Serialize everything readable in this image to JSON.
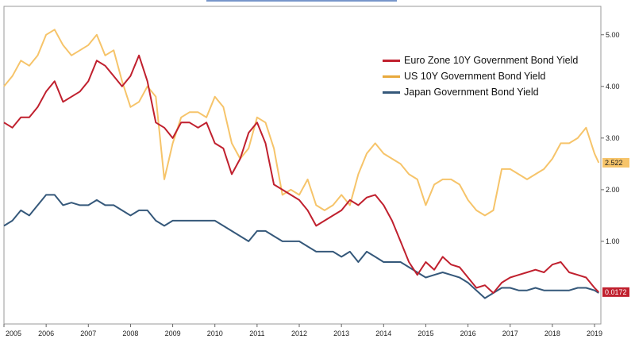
{
  "chart_data": {
    "type": "line",
    "title": "",
    "xlabel": "",
    "ylabel": "",
    "xlim": [
      2005.0,
      2019.15
    ],
    "ylim": [
      -0.6,
      5.55
    ],
    "yticks": [
      1.0,
      2.0,
      3.0,
      4.0,
      5.0
    ],
    "ytick_labels": [
      "1.00",
      "2.00",
      "3.00",
      "4.00",
      "5.00"
    ],
    "xticks": [
      2005,
      2006,
      2007,
      2008,
      2009,
      2010,
      2011,
      2012,
      2013,
      2014,
      2015,
      2016,
      2017,
      2018,
      2019
    ],
    "xtick_labels": [
      "2005",
      "2006",
      "2007",
      "2008",
      "2009",
      "2010",
      "2011",
      "2012",
      "2013",
      "2014",
      "2015",
      "2016",
      "2017",
      "2018",
      "2019"
    ],
    "legend_position": "top-right",
    "grid": false,
    "colors": {
      "euro": "#c0202e",
      "us": "#f6c46a",
      "japan": "#35587a",
      "tag_us_bg": "#f6c46a",
      "tag_euro_bg": "#c0202e"
    },
    "last_value_tags": [
      {
        "series": "US 10Y Government Bond Yield",
        "label": "2.522",
        "value": 2.522
      },
      {
        "series": "Euro Zone 10Y Government Bond Yield",
        "label": "0.0172",
        "value": 0.0172
      }
    ],
    "series": [
      {
        "name": "Euro Zone 10Y Government Bond Yield",
        "key": "euro",
        "x": [
          2005.0,
          2005.2,
          2005.4,
          2005.6,
          2005.8,
          2006.0,
          2006.2,
          2006.4,
          2006.6,
          2006.8,
          2007.0,
          2007.2,
          2007.4,
          2007.6,
          2007.8,
          2008.0,
          2008.2,
          2008.4,
          2008.6,
          2008.8,
          2009.0,
          2009.2,
          2009.4,
          2009.6,
          2009.8,
          2010.0,
          2010.2,
          2010.4,
          2010.6,
          2010.8,
          2011.0,
          2011.2,
          2011.4,
          2011.6,
          2011.8,
          2012.0,
          2012.2,
          2012.4,
          2012.6,
          2012.8,
          2013.0,
          2013.2,
          2013.4,
          2013.6,
          2013.8,
          2014.0,
          2014.2,
          2014.4,
          2014.6,
          2014.8,
          2015.0,
          2015.2,
          2015.4,
          2015.6,
          2015.8,
          2016.0,
          2016.2,
          2016.4,
          2016.6,
          2016.8,
          2017.0,
          2017.2,
          2017.4,
          2017.6,
          2017.8,
          2018.0,
          2018.2,
          2018.4,
          2018.6,
          2018.8,
          2019.0,
          2019.1
        ],
        "values": [
          3.3,
          3.2,
          3.4,
          3.4,
          3.6,
          3.9,
          4.1,
          3.7,
          3.8,
          3.9,
          4.1,
          4.5,
          4.4,
          4.2,
          4.0,
          4.2,
          4.6,
          4.1,
          3.3,
          3.2,
          3.0,
          3.3,
          3.3,
          3.2,
          3.3,
          2.9,
          2.8,
          2.3,
          2.6,
          3.1,
          3.3,
          2.9,
          2.1,
          2.0,
          1.9,
          1.8,
          1.6,
          1.3,
          1.4,
          1.5,
          1.6,
          1.8,
          1.7,
          1.85,
          1.9,
          1.7,
          1.4,
          1.0,
          0.6,
          0.35,
          0.6,
          0.45,
          0.7,
          0.55,
          0.5,
          0.3,
          0.1,
          0.15,
          0.0,
          0.2,
          0.3,
          0.35,
          0.4,
          0.45,
          0.4,
          0.55,
          0.6,
          0.4,
          0.35,
          0.3,
          0.1,
          0.0172
        ]
      },
      {
        "name": "US 10Y Government Bond Yield",
        "key": "us",
        "x": [
          2005.0,
          2005.2,
          2005.4,
          2005.6,
          2005.8,
          2006.0,
          2006.2,
          2006.4,
          2006.6,
          2006.8,
          2007.0,
          2007.2,
          2007.4,
          2007.6,
          2007.8,
          2008.0,
          2008.2,
          2008.4,
          2008.6,
          2008.8,
          2009.0,
          2009.2,
          2009.4,
          2009.6,
          2009.8,
          2010.0,
          2010.2,
          2010.4,
          2010.6,
          2010.8,
          2011.0,
          2011.2,
          2011.4,
          2011.6,
          2011.8,
          2012.0,
          2012.2,
          2012.4,
          2012.6,
          2012.8,
          2013.0,
          2013.2,
          2013.4,
          2013.6,
          2013.8,
          2014.0,
          2014.2,
          2014.4,
          2014.6,
          2014.8,
          2015.0,
          2015.2,
          2015.4,
          2015.6,
          2015.8,
          2016.0,
          2016.2,
          2016.4,
          2016.6,
          2016.8,
          2017.0,
          2017.2,
          2017.4,
          2017.6,
          2017.8,
          2018.0,
          2018.2,
          2018.4,
          2018.6,
          2018.8,
          2019.0,
          2019.1
        ],
        "values": [
          4.0,
          4.2,
          4.5,
          4.4,
          4.6,
          5.0,
          5.1,
          4.8,
          4.6,
          4.7,
          4.8,
          5.0,
          4.6,
          4.7,
          4.1,
          3.6,
          3.7,
          4.0,
          3.8,
          2.2,
          2.9,
          3.4,
          3.5,
          3.5,
          3.4,
          3.8,
          3.6,
          2.9,
          2.6,
          2.8,
          3.4,
          3.3,
          2.8,
          1.9,
          2.0,
          1.9,
          2.2,
          1.7,
          1.6,
          1.7,
          1.9,
          1.7,
          2.3,
          2.7,
          2.9,
          2.7,
          2.6,
          2.5,
          2.3,
          2.2,
          1.7,
          2.1,
          2.2,
          2.2,
          2.1,
          1.8,
          1.6,
          1.5,
          1.6,
          2.4,
          2.4,
          2.3,
          2.2,
          2.3,
          2.4,
          2.6,
          2.9,
          2.9,
          3.0,
          3.2,
          2.7,
          2.522
        ]
      },
      {
        "name": "Japan Government Bond Yield",
        "key": "japan",
        "x": [
          2005.0,
          2005.2,
          2005.4,
          2005.6,
          2005.8,
          2006.0,
          2006.2,
          2006.4,
          2006.6,
          2006.8,
          2007.0,
          2007.2,
          2007.4,
          2007.6,
          2007.8,
          2008.0,
          2008.2,
          2008.4,
          2008.6,
          2008.8,
          2009.0,
          2009.2,
          2009.4,
          2009.6,
          2009.8,
          2010.0,
          2010.2,
          2010.4,
          2010.6,
          2010.8,
          2011.0,
          2011.2,
          2011.4,
          2011.6,
          2011.8,
          2012.0,
          2012.2,
          2012.4,
          2012.6,
          2012.8,
          2013.0,
          2013.2,
          2013.4,
          2013.6,
          2013.8,
          2014.0,
          2014.2,
          2014.4,
          2014.6,
          2014.8,
          2015.0,
          2015.2,
          2015.4,
          2015.6,
          2015.8,
          2016.0,
          2016.2,
          2016.4,
          2016.6,
          2016.8,
          2017.0,
          2017.2,
          2017.4,
          2017.6,
          2017.8,
          2018.0,
          2018.2,
          2018.4,
          2018.6,
          2018.8,
          2019.0,
          2019.1
        ],
        "values": [
          1.3,
          1.4,
          1.6,
          1.5,
          1.7,
          1.9,
          1.9,
          1.7,
          1.75,
          1.7,
          1.7,
          1.8,
          1.7,
          1.7,
          1.6,
          1.5,
          1.6,
          1.6,
          1.4,
          1.3,
          1.4,
          1.4,
          1.4,
          1.4,
          1.4,
          1.4,
          1.3,
          1.2,
          1.1,
          1.0,
          1.2,
          1.2,
          1.1,
          1.0,
          1.0,
          1.0,
          0.9,
          0.8,
          0.8,
          0.8,
          0.7,
          0.8,
          0.6,
          0.8,
          0.7,
          0.6,
          0.6,
          0.6,
          0.5,
          0.4,
          0.3,
          0.35,
          0.4,
          0.35,
          0.3,
          0.2,
          0.05,
          -0.1,
          0.0,
          0.1,
          0.1,
          0.05,
          0.05,
          0.1,
          0.05,
          0.05,
          0.05,
          0.05,
          0.1,
          0.1,
          0.05,
          0.0
        ]
      }
    ]
  }
}
